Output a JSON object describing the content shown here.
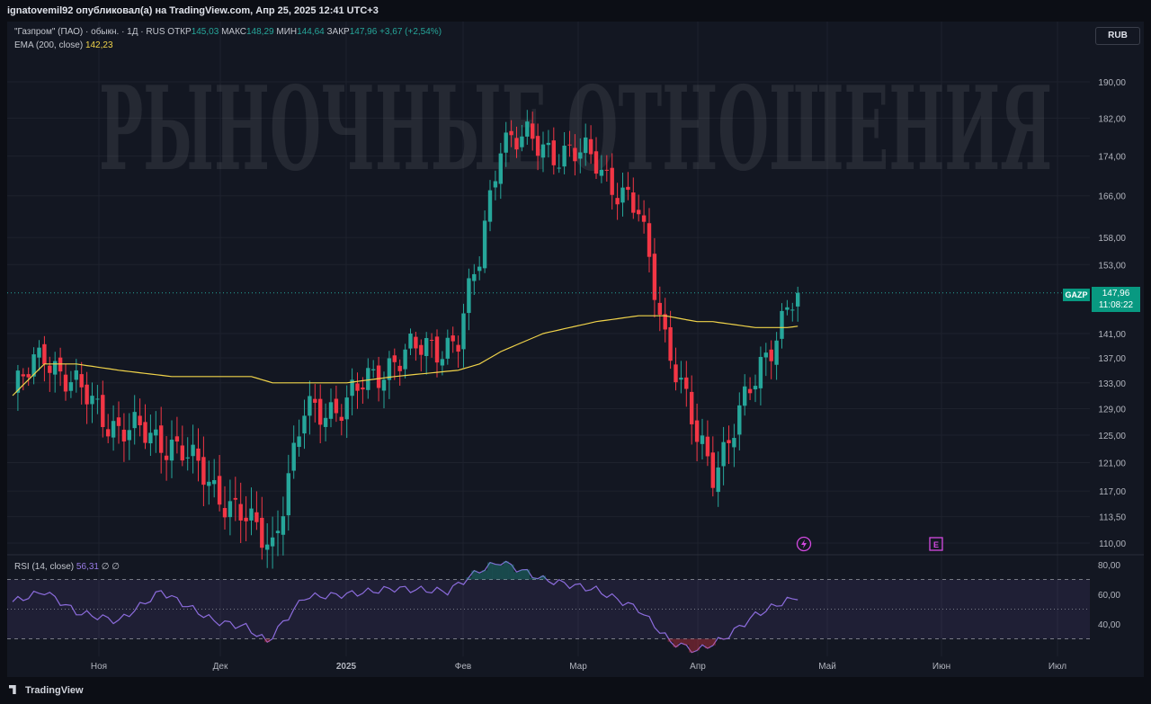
{
  "header": {
    "publisher": "ignatovemil92 опубликовал(а) на TradingView.com, Апр 25, 2025 12:41 UTC+3"
  },
  "legend": {
    "symbol": "\"Газпром\" (ПАО) · обыкн. · 1Д · RUS",
    "open_label": "ОТКР",
    "open": "145,03",
    "high_label": "МАКС",
    "high": "148,29",
    "low_label": "МИН",
    "low": "144,64",
    "close_label": "ЗАКР",
    "close": "147,96",
    "change": "+3,67 (+2,54%)",
    "ema_label": "EMA (200, close)",
    "ema_value": "142,23",
    "rsi_label": "RSI (14, close)",
    "rsi_value": "56,31",
    "rsi_extra": "∅ ∅"
  },
  "currency_button": "RUB",
  "watermark": "РЫНОЧНЫЕ ОТНОШЕНИЯ",
  "last_price": {
    "symbol": "GAZP",
    "price": "147,96",
    "countdown": "11:08:22"
  },
  "colors": {
    "up": "#26a69a",
    "down": "#f23645",
    "ema": "#f0d34a",
    "rsi": "#8c6cdd",
    "background": "#131722"
  },
  "icons": [
    "lightning-icon",
    "earnings-e-icon"
  ],
  "footer": {
    "brand": "TradingView"
  },
  "chart_data": {
    "type": "candlestick",
    "price_axis": {
      "ticks": [
        "190,00",
        "182,00",
        "174,00",
        "166,00",
        "158,00",
        "153,00",
        "141,00",
        "137,00",
        "133,00",
        "129,00",
        "125,00",
        "121,00",
        "117,00",
        "113,50",
        "110,00"
      ],
      "scale": "log"
    },
    "time_axis": {
      "ticks": [
        "Ноя",
        "Дек",
        "2025",
        "Фев",
        "Мар",
        "Апр",
        "Май",
        "Июн",
        "Июл"
      ]
    },
    "rsi_axis": {
      "ticks": [
        "80,00",
        "60,00",
        "40,00"
      ],
      "bands": [
        70,
        30
      ]
    },
    "trend": [
      [
        0,
        131,
        131
      ],
      [
        6,
        138,
        136
      ],
      [
        12,
        132,
        136
      ],
      [
        20,
        126,
        135
      ],
      [
        30,
        124,
        134
      ],
      [
        45,
        112,
        134
      ],
      [
        49,
        110,
        133
      ],
      [
        55,
        128,
        133
      ],
      [
        63,
        130,
        133
      ],
      [
        72,
        137,
        134
      ],
      [
        84,
        140,
        135
      ],
      [
        88,
        154,
        136
      ],
      [
        92,
        178,
        138
      ],
      [
        100,
        176,
        141
      ],
      [
        110,
        173,
        143
      ],
      [
        118,
        162,
        144
      ],
      [
        123,
        141,
        144
      ],
      [
        129,
        124,
        143
      ],
      [
        132,
        120,
        143
      ],
      [
        140,
        133,
        142
      ],
      [
        146,
        146,
        142
      ],
      [
        148,
        147.96,
        142.23
      ]
    ],
    "rsi_trend": [
      [
        0,
        55
      ],
      [
        6,
        62
      ],
      [
        12,
        48
      ],
      [
        20,
        42
      ],
      [
        28,
        62
      ],
      [
        38,
        42
      ],
      [
        44,
        38
      ],
      [
        48,
        28
      ],
      [
        55,
        58
      ],
      [
        63,
        60
      ],
      [
        72,
        64
      ],
      [
        82,
        62
      ],
      [
        88,
        76
      ],
      [
        92,
        82
      ],
      [
        100,
        70
      ],
      [
        110,
        63
      ],
      [
        118,
        50
      ],
      [
        124,
        28
      ],
      [
        129,
        22
      ],
      [
        134,
        30
      ],
      [
        140,
        46
      ],
      [
        146,
        56
      ],
      [
        148,
        56.31
      ]
    ]
  }
}
